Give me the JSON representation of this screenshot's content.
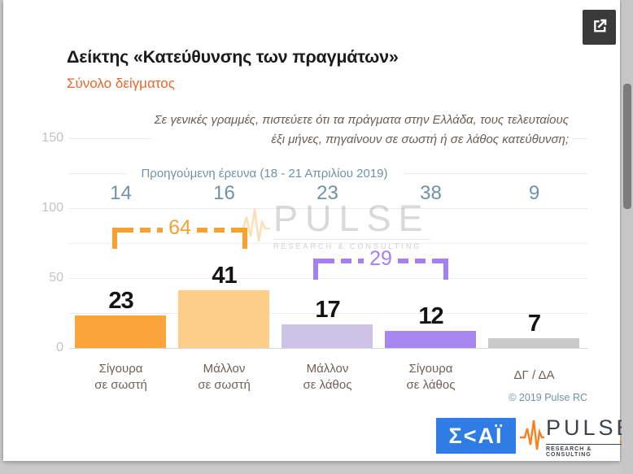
{
  "header": {
    "title": "Δείκτης «Κατεύθυνσης των πραγμάτων»",
    "subtitle": "Σύνολο δείγματος"
  },
  "question": {
    "line1": "Σε γενικές γραμμές, πιστεύετε ότι τα πράγματα στην Ελλάδα, τους τελευταίους",
    "line2": "έξι μήνες, πηγαίνουν σε σωστή ή σε λάθος κατεύθυνση;"
  },
  "previous_survey": {
    "label": "Προηγούμενη έρευνα (18 - 21  Απριλίου  2019)",
    "values": [
      "14",
      "16",
      "23",
      "38",
      "9"
    ]
  },
  "chart_data": {
    "type": "bar",
    "title": "Δείκτης «Κατεύθυνσης των πραγμάτων»",
    "subtitle": "Σύνολο δείγματος",
    "question": "Σε γενικές γραμμές, πιστεύετε ότι τα πράγματα στην Ελλάδα, τους τελευταίους έξι μήνες, πηγαίνουν σε σωστή ή σε λάθος κατεύθυνση;",
    "categories": [
      "Σίγουρα σε σωστή",
      "Μάλλον σε σωστή",
      "Μάλλον σε λάθος",
      "Σίγουρα σε λάθος",
      "ΔΓ / ΔΑ"
    ],
    "x_labels": [
      [
        "Σίγουρα",
        "σε σωστή"
      ],
      [
        "Μάλλον",
        "σε σωστή"
      ],
      [
        "Μάλλον",
        "σε λάθος"
      ],
      [
        "Σίγουρα",
        "σε λάθος"
      ],
      [
        "ΔΓ / ΔΑ"
      ]
    ],
    "values": [
      23,
      41,
      17,
      12,
      7
    ],
    "bar_colors": [
      "#FAA43A",
      "#FCCE87",
      "#CDC2E8",
      "#A886F0",
      "#C9C9C9"
    ],
    "previous_label": "Προηγούμενη έρευνα (18 - 21 Απριλίου 2019)",
    "previous_values": [
      14,
      16,
      23,
      38,
      9
    ],
    "groups": [
      {
        "label": "64",
        "from": 0,
        "to": 1,
        "color": "#F6A230"
      },
      {
        "label": "29",
        "from": 2,
        "to": 3,
        "color": "#A580F2"
      }
    ],
    "ylim": [
      0,
      150
    ],
    "yticks": [
      "150",
      "100",
      "50",
      "0"
    ],
    "grid": true,
    "legend_position": "none"
  },
  "watermark": {
    "brand": "PULSE",
    "tagline": "RESEARCH & CONSULTING"
  },
  "footer": {
    "copyright": "© 2019 Pulse RC",
    "skai_logo_text": "Σ<ΑΪ",
    "pulse_logo_text": "PULSE",
    "pulse_logo_tagline": "RESEARCH & CONSULTING"
  }
}
